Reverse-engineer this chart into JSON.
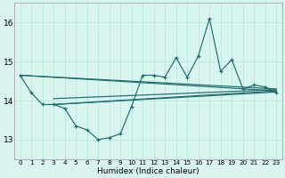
{
  "xlabel": "Humidex (Indice chaleur)",
  "xlim": [
    -0.5,
    23.5
  ],
  "ylim": [
    12.5,
    16.5
  ],
  "yticks": [
    13,
    14,
    15,
    16
  ],
  "xticks": [
    0,
    1,
    2,
    3,
    4,
    5,
    6,
    7,
    8,
    9,
    10,
    11,
    12,
    13,
    14,
    15,
    16,
    17,
    18,
    19,
    20,
    21,
    22,
    23
  ],
  "bg_color": "#d8f5f0",
  "grid_color": "#b8e8e0",
  "line_color": "#236b6b",
  "main_x": [
    0,
    1,
    2,
    3,
    4,
    5,
    6,
    7,
    8,
    9,
    10,
    11,
    12,
    13,
    14,
    15,
    16,
    17,
    18,
    19,
    20,
    21,
    22,
    23
  ],
  "main_y": [
    14.65,
    14.2,
    13.9,
    13.9,
    13.8,
    13.35,
    13.25,
    13.0,
    13.05,
    13.15,
    13.85,
    14.65,
    14.65,
    14.6,
    15.1,
    14.6,
    15.15,
    16.1,
    14.75,
    15.05,
    14.3,
    14.4,
    14.35,
    14.2
  ],
  "straight_lines": [
    {
      "x0": 0,
      "y0": 14.65,
      "x1": 23,
      "y1": 14.25
    },
    {
      "x0": 0,
      "y0": 14.65,
      "x1": 23,
      "y1": 14.3
    },
    {
      "x0": 3,
      "y0": 13.9,
      "x1": 23,
      "y1": 14.25
    },
    {
      "x0": 3,
      "y0": 14.05,
      "x1": 23,
      "y1": 14.28
    },
    {
      "x0": 3,
      "y0": 13.9,
      "x1": 23,
      "y1": 14.22
    }
  ]
}
